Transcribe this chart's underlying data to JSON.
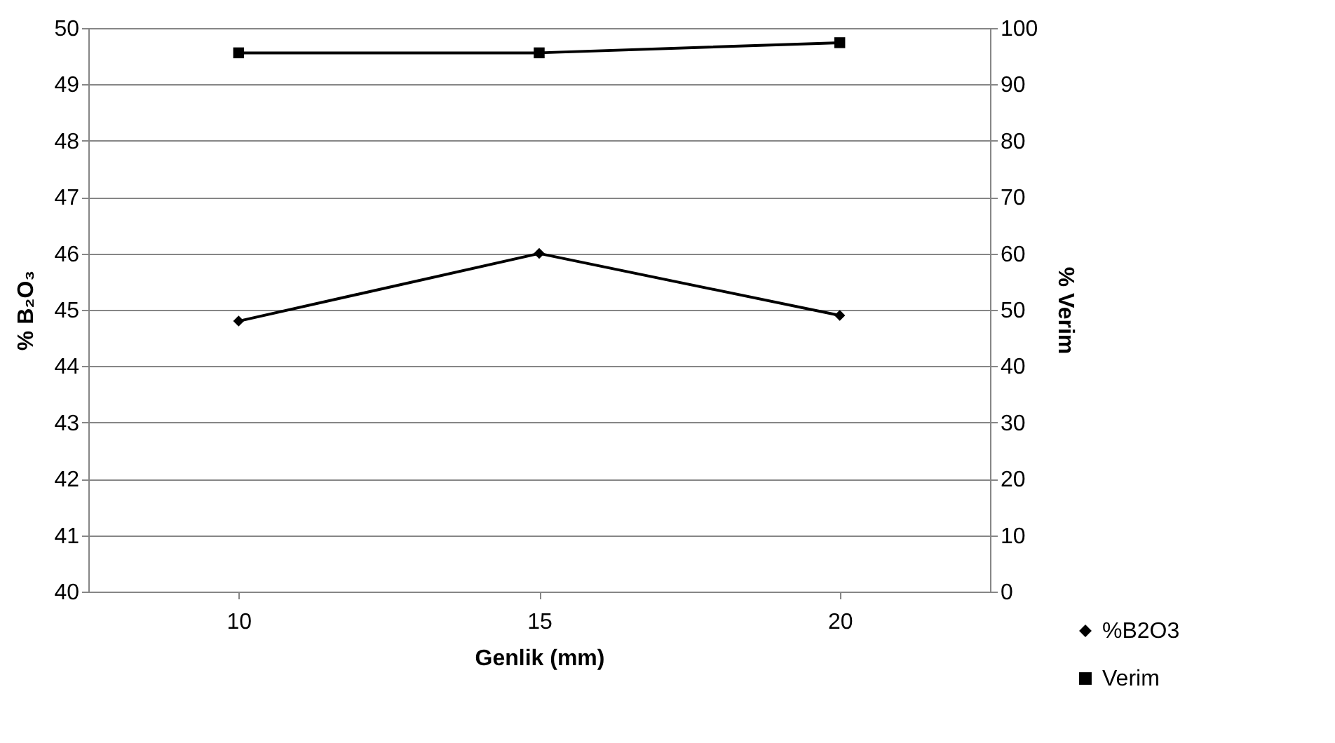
{
  "chart_data": {
    "type": "line",
    "xlabel": "Genlik (mm)",
    "ylabel": "% B₂O₃",
    "y2label": "% Verim",
    "categories": [
      "10",
      "15",
      "20"
    ],
    "series": [
      {
        "name": "%B2O3",
        "color": "#000000",
        "marker": "diamond",
        "values": [
          44.8,
          46.0,
          44.9
        ]
      },
      {
        "name": "Verim",
        "color": "#000000",
        "marker": "square",
        "axis": "y2",
        "values": [
          95.6,
          95.6,
          97.4
        ]
      }
    ],
    "ylim": [
      40,
      50
    ],
    "yticks": [
      40,
      41,
      42,
      43,
      44,
      45,
      46,
      47,
      48,
      49,
      50
    ],
    "y2lim": [
      0,
      100
    ],
    "y2ticks": [
      0,
      10,
      20,
      30,
      40,
      50,
      60,
      70,
      80,
      90,
      100
    ],
    "grid": "y",
    "legend": "bottom right",
    "line_style": "solid"
  }
}
